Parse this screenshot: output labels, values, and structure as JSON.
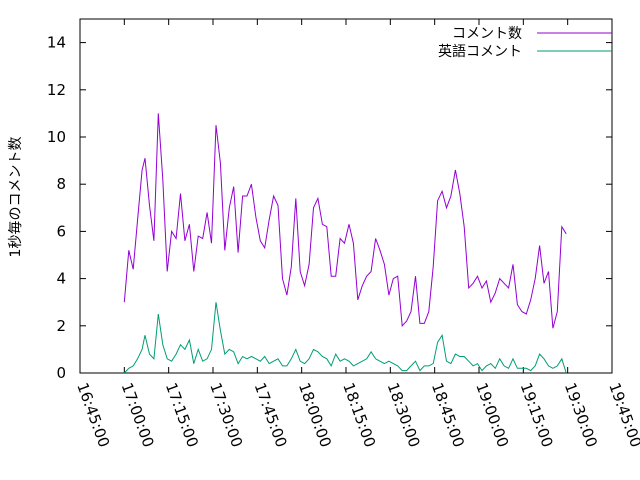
{
  "chart_data": {
    "type": "line",
    "title": "",
    "xlabel": "",
    "ylabel": "1秒毎のコメント数",
    "x_tick_labels": [
      "16:45:00",
      "17:00:00",
      "17:15:00",
      "17:30:00",
      "17:45:00",
      "18:00:00",
      "18:15:00",
      "18:30:00",
      "18:45:00",
      "19:00:00",
      "19:15:00",
      "19:30:00",
      "19:45:00"
    ],
    "y_tick_labels": [
      "0",
      "2",
      "4",
      "6",
      "8",
      "10",
      "12",
      "14"
    ],
    "xlim_minutes_after_1645": [
      0,
      180
    ],
    "ylim": [
      0,
      15
    ],
    "grid": false,
    "legend_position": "top-right",
    "series": [
      {
        "name": "コメント数",
        "color": "#9400d3",
        "points": [
          [
            15,
            3.0
          ],
          [
            16.5,
            5.2
          ],
          [
            18,
            4.4
          ],
          [
            19.5,
            6.5
          ],
          [
            21,
            8.6
          ],
          [
            22,
            9.1
          ],
          [
            23.5,
            7.1
          ],
          [
            25,
            5.6
          ],
          [
            26.5,
            11.0
          ],
          [
            28,
            8.2
          ],
          [
            29.5,
            4.3
          ],
          [
            31,
            6.0
          ],
          [
            32.5,
            5.7
          ],
          [
            34,
            7.6
          ],
          [
            35.5,
            5.6
          ],
          [
            37,
            6.3
          ],
          [
            38.5,
            4.3
          ],
          [
            40,
            5.8
          ],
          [
            41.5,
            5.7
          ],
          [
            43,
            6.8
          ],
          [
            44.5,
            5.5
          ],
          [
            46,
            10.5
          ],
          [
            47.5,
            8.9
          ],
          [
            49,
            5.2
          ],
          [
            50.5,
            7.0
          ],
          [
            52,
            7.9
          ],
          [
            53.5,
            5.1
          ],
          [
            55,
            7.5
          ],
          [
            56.5,
            7.5
          ],
          [
            58,
            8.0
          ],
          [
            59.5,
            6.6
          ],
          [
            61,
            5.6
          ],
          [
            62.5,
            5.3
          ],
          [
            64,
            6.5
          ],
          [
            65.5,
            7.5
          ],
          [
            67,
            7.1
          ],
          [
            68.5,
            4.0
          ],
          [
            70,
            3.3
          ],
          [
            71.5,
            4.5
          ],
          [
            73,
            7.4
          ],
          [
            74.5,
            4.3
          ],
          [
            76,
            3.7
          ],
          [
            77.5,
            4.6
          ],
          [
            79,
            7.0
          ],
          [
            80.5,
            7.4
          ],
          [
            82,
            6.3
          ],
          [
            83.5,
            6.2
          ],
          [
            85,
            4.1
          ],
          [
            86.5,
            4.1
          ],
          [
            88,
            5.7
          ],
          [
            89.5,
            5.5
          ],
          [
            91,
            6.3
          ],
          [
            92.5,
            5.5
          ],
          [
            94,
            3.1
          ],
          [
            95.5,
            3.7
          ],
          [
            97,
            4.1
          ],
          [
            98.5,
            4.3
          ],
          [
            100,
            5.7
          ],
          [
            101.5,
            5.2
          ],
          [
            103,
            4.6
          ],
          [
            104.5,
            3.3
          ],
          [
            106,
            4.0
          ],
          [
            107.5,
            4.1
          ],
          [
            109,
            2.0
          ],
          [
            110.5,
            2.2
          ],
          [
            112,
            2.6
          ],
          [
            113.5,
            4.1
          ],
          [
            115,
            2.1
          ],
          [
            116.5,
            2.1
          ],
          [
            118,
            2.6
          ],
          [
            119.5,
            4.5
          ],
          [
            121,
            7.3
          ],
          [
            122.5,
            7.7
          ],
          [
            124,
            7.0
          ],
          [
            125.5,
            7.5
          ],
          [
            127,
            8.6
          ],
          [
            128.5,
            7.6
          ],
          [
            130,
            6.2
          ],
          [
            131.5,
            3.6
          ],
          [
            133,
            3.8
          ],
          [
            134.5,
            4.1
          ],
          [
            136,
            3.6
          ],
          [
            137.5,
            3.9
          ],
          [
            139,
            3.0
          ],
          [
            140.5,
            3.4
          ],
          [
            142,
            4.0
          ],
          [
            143.5,
            3.8
          ],
          [
            145,
            3.6
          ],
          [
            146.5,
            4.6
          ],
          [
            148,
            2.9
          ],
          [
            149.5,
            2.6
          ],
          [
            151,
            2.5
          ],
          [
            152.5,
            3.1
          ],
          [
            154,
            4.0
          ],
          [
            155.5,
            5.4
          ],
          [
            157,
            3.8
          ],
          [
            158.5,
            4.3
          ],
          [
            160,
            1.9
          ],
          [
            161.5,
            2.6
          ],
          [
            163,
            6.2
          ],
          [
            164.5,
            5.9
          ]
        ]
      },
      {
        "name": "英語コメント",
        "color": "#009e73",
        "points": [
          [
            15,
            0.0
          ],
          [
            16.5,
            0.2
          ],
          [
            18,
            0.3
          ],
          [
            19.5,
            0.6
          ],
          [
            21,
            1.0
          ],
          [
            22,
            1.6
          ],
          [
            23.5,
            0.8
          ],
          [
            25,
            0.6
          ],
          [
            26.5,
            2.5
          ],
          [
            28,
            1.2
          ],
          [
            29.5,
            0.6
          ],
          [
            31,
            0.5
          ],
          [
            32.5,
            0.8
          ],
          [
            34,
            1.2
          ],
          [
            35.5,
            1.0
          ],
          [
            37,
            1.4
          ],
          [
            38.5,
            0.4
          ],
          [
            40,
            1.0
          ],
          [
            41.5,
            0.5
          ],
          [
            43,
            0.6
          ],
          [
            44.5,
            1.0
          ],
          [
            46,
            3.0
          ],
          [
            47.5,
            1.8
          ],
          [
            49,
            0.8
          ],
          [
            50.5,
            1.0
          ],
          [
            52,
            0.9
          ],
          [
            53.5,
            0.4
          ],
          [
            55,
            0.7
          ],
          [
            56.5,
            0.6
          ],
          [
            58,
            0.7
          ],
          [
            59.5,
            0.6
          ],
          [
            61,
            0.5
          ],
          [
            62.5,
            0.7
          ],
          [
            64,
            0.4
          ],
          [
            65.5,
            0.5
          ],
          [
            67,
            0.6
          ],
          [
            68.5,
            0.3
          ],
          [
            70,
            0.3
          ],
          [
            71.5,
            0.6
          ],
          [
            73,
            1.0
          ],
          [
            74.5,
            0.5
          ],
          [
            76,
            0.4
          ],
          [
            77.5,
            0.6
          ],
          [
            79,
            1.0
          ],
          [
            80.5,
            0.9
          ],
          [
            82,
            0.7
          ],
          [
            83.5,
            0.6
          ],
          [
            85,
            0.3
          ],
          [
            86.5,
            0.8
          ],
          [
            88,
            0.5
          ],
          [
            89.5,
            0.6
          ],
          [
            91,
            0.5
          ],
          [
            92.5,
            0.3
          ],
          [
            94,
            0.4
          ],
          [
            95.5,
            0.5
          ],
          [
            97,
            0.6
          ],
          [
            98.5,
            0.9
          ],
          [
            100,
            0.6
          ],
          [
            101.5,
            0.5
          ],
          [
            103,
            0.4
          ],
          [
            104.5,
            0.5
          ],
          [
            106,
            0.4
          ],
          [
            107.5,
            0.3
          ],
          [
            109,
            0.1
          ],
          [
            110.5,
            0.1
          ],
          [
            112,
            0.3
          ],
          [
            113.5,
            0.5
          ],
          [
            115,
            0.1
          ],
          [
            116.5,
            0.3
          ],
          [
            118,
            0.3
          ],
          [
            119.5,
            0.4
          ],
          [
            121,
            1.3
          ],
          [
            122.5,
            1.6
          ],
          [
            124,
            0.5
          ],
          [
            125.5,
            0.4
          ],
          [
            127,
            0.8
          ],
          [
            128.5,
            0.7
          ],
          [
            130,
            0.7
          ],
          [
            131.5,
            0.5
          ],
          [
            133,
            0.3
          ],
          [
            134.5,
            0.4
          ],
          [
            136,
            0.1
          ],
          [
            137.5,
            0.3
          ],
          [
            139,
            0.4
          ],
          [
            140.5,
            0.2
          ],
          [
            142,
            0.6
          ],
          [
            143.5,
            0.3
          ],
          [
            145,
            0.2
          ],
          [
            146.5,
            0.6
          ],
          [
            148,
            0.2
          ],
          [
            149.5,
            0.2
          ],
          [
            151,
            0.2
          ],
          [
            152.5,
            0.1
          ],
          [
            154,
            0.3
          ],
          [
            155.5,
            0.8
          ],
          [
            157,
            0.6
          ],
          [
            158.5,
            0.3
          ],
          [
            160,
            0.2
          ],
          [
            161.5,
            0.3
          ],
          [
            163,
            0.6
          ],
          [
            164.5,
            0.0
          ]
        ]
      }
    ]
  }
}
